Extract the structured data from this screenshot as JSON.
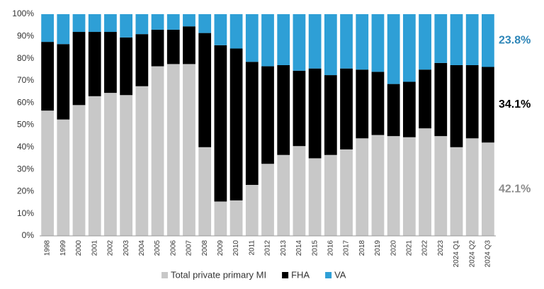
{
  "chart_data": {
    "type": "stacked_bar",
    "categories": [
      "1998",
      "1999",
      "2000",
      "2001",
      "2002",
      "2003",
      "2004",
      "2005",
      "2006",
      "2007",
      "2008",
      "2009",
      "2010",
      "2011",
      "2012",
      "2013",
      "2014",
      "2015",
      "2016",
      "2017",
      "2018",
      "2019",
      "2020",
      "2021",
      "2022",
      "2023",
      "2024 Q1",
      "2024 Q2",
      "2024 Q3"
    ],
    "series": [
      {
        "name": "Total private primary MI",
        "color": "#c8c8c8",
        "label_color": "#8c8c8c",
        "end_label": "42.1%",
        "values": [
          56.5,
          52.5,
          59,
          63,
          64.5,
          63.5,
          67.5,
          76.5,
          77.5,
          77.5,
          40,
          15.5,
          16,
          23,
          32.5,
          36.5,
          40.5,
          35,
          36.5,
          39,
          44,
          45.5,
          45,
          44.5,
          48.5,
          45,
          40,
          44,
          42.1
        ]
      },
      {
        "name": "FHA",
        "color": "#000000",
        "label_color": "#000000",
        "end_label": "34.1%",
        "values": [
          31,
          34,
          33,
          29,
          27.5,
          26,
          23.5,
          16.5,
          15.5,
          17,
          51.5,
          70.5,
          68.5,
          55.5,
          44,
          40.5,
          34,
          40.5,
          36,
          36.5,
          31,
          28.5,
          23.5,
          25,
          26.5,
          33,
          37,
          33,
          34.1
        ]
      },
      {
        "name": "VA",
        "color": "#2e9fd6",
        "label_color": "#2e86b8",
        "end_label": "23.8%",
        "values": [
          12.5,
          13.5,
          8,
          8,
          8,
          10.5,
          9,
          7,
          7,
          5.5,
          8.5,
          14,
          15.5,
          21.5,
          23.5,
          23,
          25.5,
          24.5,
          27.5,
          24.5,
          25,
          26,
          31.5,
          30.5,
          25,
          22,
          23,
          23,
          23.8
        ]
      }
    ],
    "ylim": [
      0,
      100
    ],
    "yticks": [
      {
        "value": 0,
        "label": "0%"
      },
      {
        "value": 10,
        "label": "10%"
      },
      {
        "value": 20,
        "label": "20%"
      },
      {
        "value": 30,
        "label": "30%"
      },
      {
        "value": 40,
        "label": "40%"
      },
      {
        "value": 50,
        "label": "50%"
      },
      {
        "value": 60,
        "label": "60%"
      },
      {
        "value": 70,
        "label": "70%"
      },
      {
        "value": 80,
        "label": "80%"
      },
      {
        "value": 90,
        "label": "90%"
      },
      {
        "value": 100,
        "label": "100%"
      }
    ],
    "grid": false,
    "legend": "bottom"
  }
}
